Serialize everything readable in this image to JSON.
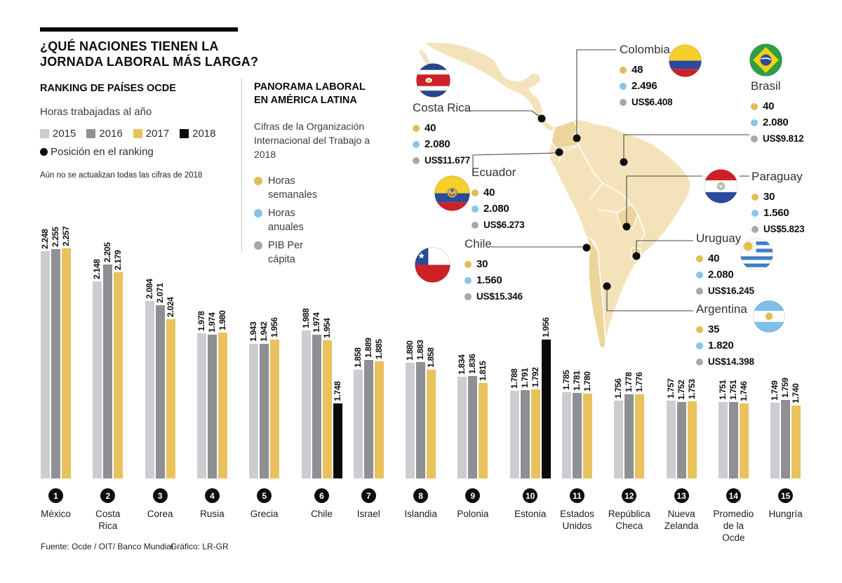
{
  "header": {
    "title_line1": "¿QUÉ NACIONES TIENEN LA",
    "title_line2": "JORNADA LABORAL MÁS LARGA?"
  },
  "left_panel": {
    "subtitle": "RANKING DE PAÍSES OCDE",
    "measure_label": "Horas trabajadas al año",
    "years": [
      {
        "label": "2015",
        "color": "#cbcdd0"
      },
      {
        "label": "2016",
        "color": "#8e9093"
      },
      {
        "label": "2017",
        "color": "#e9c25e"
      },
      {
        "label": "2018",
        "color": "#0a0a0a"
      }
    ],
    "ranking_legend": "Posición en el ranking",
    "note": "Aún no se actualizan todas las cifras de 2018"
  },
  "middle_panel": {
    "title_line1": "PANORAMA LABORAL",
    "title_line2": "EN AMÉRICA LATINA",
    "subtitle": "Cifras de la Organización Internacional del Trabajo a 2018",
    "legend": [
      {
        "label": "Horas semanales",
        "color": "#e3bc58"
      },
      {
        "label": "Horas anuales",
        "color": "#8ac4e8"
      },
      {
        "label": "PIB Per cápita",
        "color": "#a6a8ab"
      }
    ]
  },
  "map": {
    "countries": [
      {
        "slug": "costa-rica",
        "name": "Costa Rica",
        "weekly": "40",
        "annual": "2.080",
        "gdp": "US$11.677"
      },
      {
        "slug": "colombia",
        "name": "Colombia",
        "weekly": "48",
        "annual": "2.496",
        "gdp": "US$6.408"
      },
      {
        "slug": "brasil",
        "name": "Brasil",
        "weekly": "40",
        "annual": "2.080",
        "gdp": "US$9.812"
      },
      {
        "slug": "ecuador",
        "name": "Ecuador",
        "weekly": "40",
        "annual": "2.080",
        "gdp": "US$6.273"
      },
      {
        "slug": "paraguay",
        "name": "Paraguay",
        "weekly": "30",
        "annual": "1.560",
        "gdp": "US$5.823"
      },
      {
        "slug": "chile",
        "name": "Chile",
        "weekly": "30",
        "annual": "1.560",
        "gdp": "US$15.346"
      },
      {
        "slug": "uruguay",
        "name": "Uruguay",
        "weekly": "40",
        "annual": "2.080",
        "gdp": "US$16.245"
      },
      {
        "slug": "argentina",
        "name": "Argentina",
        "weekly": "35",
        "annual": "1.820",
        "gdp": "US$14.398"
      }
    ]
  },
  "chart_data": {
    "type": "bar",
    "title": "Horas trabajadas al año",
    "legend": [
      "2015",
      "2016",
      "2017",
      "2018"
    ],
    "legend_position": "top-left",
    "grid": false,
    "ylim": [
      1500,
      2300
    ],
    "value_label_format": "thousands-dot",
    "groups": [
      {
        "rank": 1,
        "category": "México",
        "display_category": "México",
        "values": {
          "2015": 2248,
          "2016": 2255,
          "2017": 2257
        }
      },
      {
        "rank": 2,
        "category": "Costa Rica",
        "display_category": "Costa\nRica",
        "values": {
          "2015": 2148,
          "2016": 2205,
          "2017": 2179
        }
      },
      {
        "rank": 3,
        "category": "Corea",
        "display_category": "Corea",
        "values": {
          "2015": 2084,
          "2016": 2071,
          "2017": 2024
        }
      },
      {
        "rank": 4,
        "category": "Rusia",
        "display_category": "Rusia",
        "values": {
          "2015": 1978,
          "2016": 1974,
          "2017": 1980
        }
      },
      {
        "rank": 5,
        "category": "Grecia",
        "display_category": "Grecia",
        "values": {
          "2015": 1943,
          "2016": 1942,
          "2017": 1956
        }
      },
      {
        "rank": 6,
        "category": "Chile",
        "display_category": "Chile",
        "values": {
          "2015": 1988,
          "2016": 1974,
          "2017": 1954,
          "2018": 1748
        }
      },
      {
        "rank": 7,
        "category": "Israel",
        "display_category": "Israel",
        "values": {
          "2015": 1858,
          "2016": 1889,
          "2017": 1885
        }
      },
      {
        "rank": 8,
        "category": "Islandia",
        "display_category": "Islandia",
        "values": {
          "2015": 1880,
          "2016": 1883,
          "2017": 1858
        }
      },
      {
        "rank": 9,
        "category": "Polonia",
        "display_category": "Polonia",
        "values": {
          "2015": 1834,
          "2016": 1836,
          "2017": 1815
        }
      },
      {
        "rank": 10,
        "category": "Estonia",
        "display_category": "Estonia",
        "values": {
          "2015": 1788,
          "2016": 1791,
          "2017": 1792,
          "2018": 1956
        }
      },
      {
        "rank": 11,
        "category": "Estados Unidos",
        "display_category": "Estados\nUnidos",
        "values": {
          "2015": 1785,
          "2016": 1781,
          "2017": 1780
        }
      },
      {
        "rank": 12,
        "category": "República Checa",
        "display_category": "República\nCheca",
        "values": {
          "2015": 1756,
          "2016": 1778,
          "2017": 1776
        }
      },
      {
        "rank": 13,
        "category": "Nueva Zelanda",
        "display_category": "Nueva\nZelanda",
        "values": {
          "2015": 1757,
          "2016": 1752,
          "2017": 1753
        }
      },
      {
        "rank": 14,
        "category": "Promedio de la Ocde",
        "display_category": "Promedio\nde la\nOcde",
        "values": {
          "2015": 1751,
          "2016": 1751,
          "2017": 1746
        }
      },
      {
        "rank": 15,
        "category": "Hungría",
        "display_category": "Hungría",
        "values": {
          "2015": 1749,
          "2016": 1759,
          "2017": 1740
        }
      }
    ]
  },
  "footer": {
    "source": "Fuente: Ocde / OIT/ Banco Mundial",
    "credit": "Gráfico: LR-GR"
  }
}
